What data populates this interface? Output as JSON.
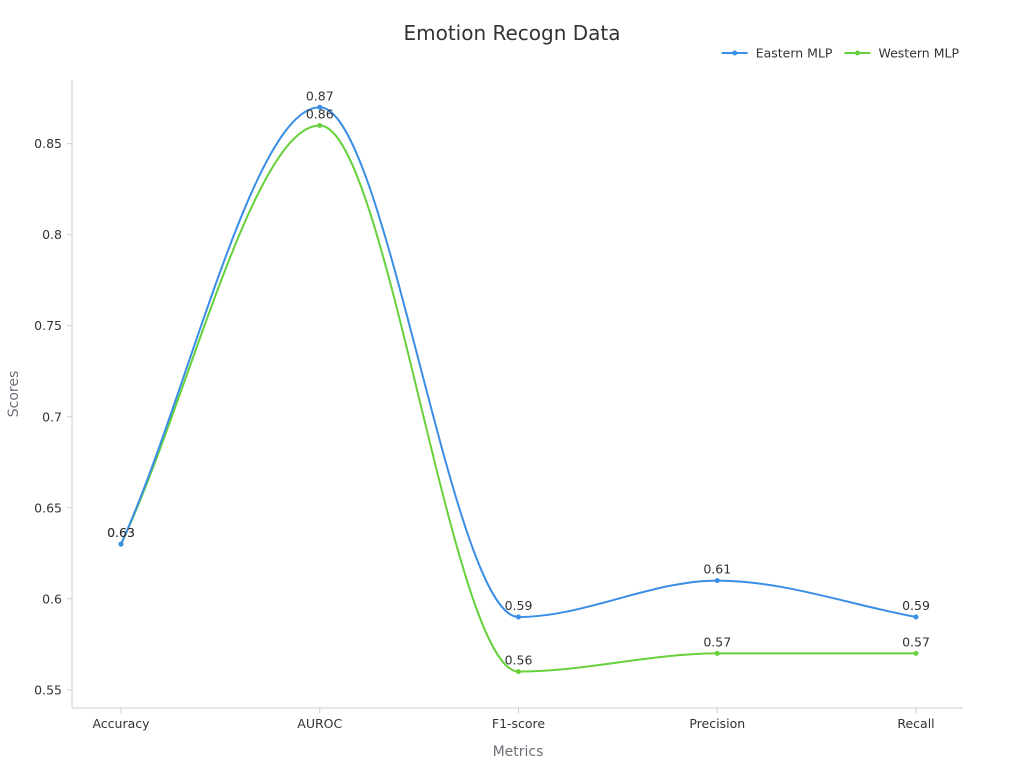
{
  "chart_data": {
    "type": "line",
    "title": "Emotion Recogn Data",
    "xlabel": "Metrics",
    "ylabel": "Scores",
    "categories": [
      "Accuracy",
      "AUROC",
      "F1-score",
      "Precision",
      "Recall"
    ],
    "ylim": [
      0.54,
      0.885
    ],
    "yticks": [
      0.55,
      0.6,
      0.65,
      0.7,
      0.75,
      0.8,
      0.85
    ],
    "ytick_labels": [
      "0.55",
      "0.6",
      "0.65",
      "0.7",
      "0.75",
      "0.8",
      "0.85"
    ],
    "smooth": true,
    "grid": false,
    "legend_position": "top-right",
    "series": [
      {
        "name": "Eastern MLP",
        "color": "#3a8ee6",
        "values": [
          0.63,
          0.87,
          0.59,
          0.61,
          0.59
        ],
        "labels": [
          "0.63",
          "0.87",
          "0.59",
          "0.61",
          "0.59"
        ]
      },
      {
        "name": "Western MLP",
        "color": "#66d13b",
        "values": [
          0.63,
          0.86,
          0.56,
          0.57,
          0.57
        ],
        "labels": [
          "0.63",
          "0.86",
          "0.56",
          "0.57",
          "0.57"
        ]
      }
    ]
  }
}
